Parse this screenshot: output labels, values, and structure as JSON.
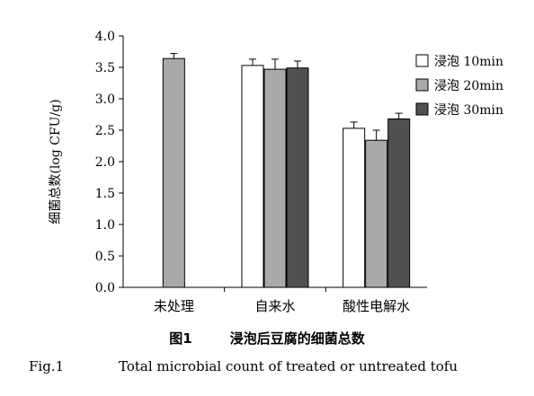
{
  "chart_data": {
    "type": "bar",
    "categories": [
      "未处理",
      "自来水",
      "酸性电解水"
    ],
    "series": [
      {
        "name": "浸泡 10min",
        "color": "#ffffff",
        "values": [
          null,
          3.53,
          2.53
        ],
        "errors": [
          null,
          0.1,
          0.1
        ]
      },
      {
        "name": "浸泡 20min",
        "color": "#a9a9a9",
        "values": [
          3.64,
          3.47,
          2.34
        ],
        "errors": [
          0.08,
          0.16,
          0.16
        ]
      },
      {
        "name": "浸泡 30min",
        "color": "#505050",
        "values": [
          null,
          3.49,
          2.68
        ],
        "errors": [
          null,
          0.11,
          0.09
        ]
      }
    ],
    "ylabel": "细菌总数(log CFU/g)",
    "ylim": [
      0,
      4.0
    ],
    "yticks": [
      "0.0",
      "0.5",
      "1.0",
      "1.5",
      "2.0",
      "2.5",
      "3.0",
      "3.5",
      "4.0"
    ],
    "legend_position": "top-right",
    "grid": false
  },
  "caption": {
    "cn_number": "图1",
    "cn_title": "浸泡后豆腐的细菌总数",
    "en_number": "Fig.1",
    "en_title": "Total microbial count of treated or untreated tofu"
  }
}
